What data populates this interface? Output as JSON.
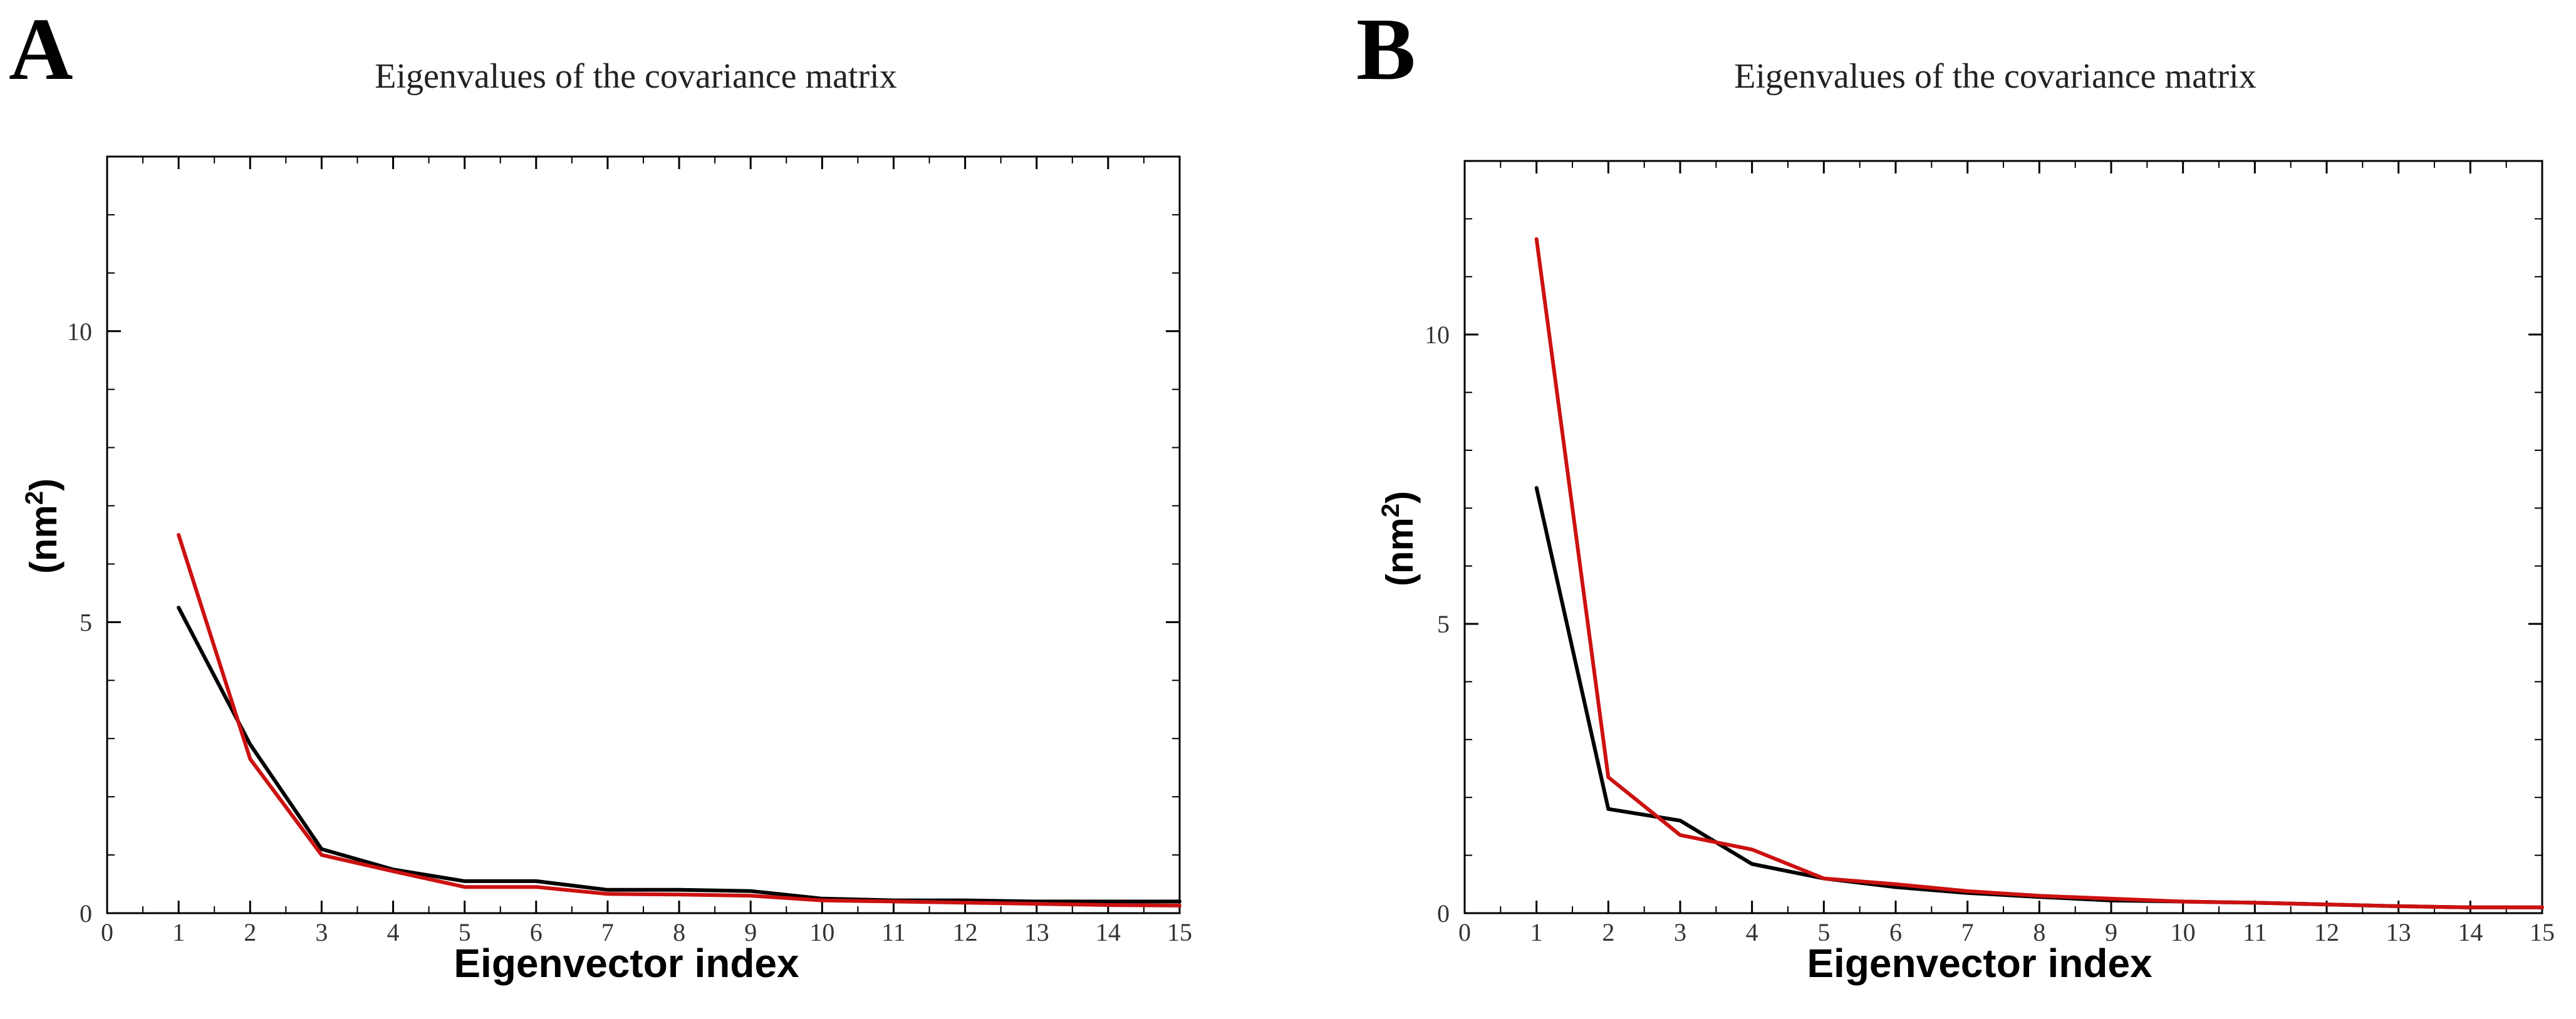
{
  "chart_data": [
    {
      "panel": "A",
      "type": "line",
      "title": "Eigenvalues of the covariance matrix",
      "xlabel": "Eigenvector index",
      "ylabel_base": "(nm",
      "ylabel_sup": "2",
      "ylabel_end": ")",
      "xlim": [
        0,
        15
      ],
      "ylim": [
        0,
        13
      ],
      "xticks": [
        0,
        1,
        2,
        3,
        4,
        5,
        6,
        7,
        8,
        9,
        10,
        11,
        12,
        13,
        14,
        15
      ],
      "yticks": [
        0,
        5,
        10
      ],
      "grid": false,
      "series": [
        {
          "name": "black",
          "color": "#000000",
          "x": [
            1,
            2,
            3,
            4,
            5,
            6,
            7,
            8,
            9,
            10,
            11,
            12,
            13,
            14,
            15
          ],
          "values": [
            5.25,
            2.9,
            1.1,
            0.75,
            0.55,
            0.55,
            0.4,
            0.4,
            0.38,
            0.25,
            0.22,
            0.22,
            0.2,
            0.2,
            0.2
          ]
        },
        {
          "name": "red",
          "color": "#cc1111",
          "x": [
            1,
            2,
            3,
            4,
            5,
            6,
            7,
            8,
            9,
            10,
            11,
            12,
            13,
            14,
            15
          ],
          "values": [
            6.5,
            2.65,
            1.0,
            0.72,
            0.45,
            0.45,
            0.33,
            0.32,
            0.3,
            0.22,
            0.2,
            0.18,
            0.16,
            0.14,
            0.13
          ]
        }
      ]
    },
    {
      "panel": "B",
      "type": "line",
      "title": "Eigenvalues of the covariance matrix",
      "xlabel": "Eigenvector index",
      "ylabel_base": "(nm",
      "ylabel_sup": "2",
      "ylabel_end": ")",
      "xlim": [
        0,
        15
      ],
      "ylim": [
        0,
        13
      ],
      "xticks": [
        0,
        1,
        2,
        3,
        4,
        5,
        6,
        7,
        8,
        9,
        10,
        11,
        12,
        13,
        14,
        15
      ],
      "yticks": [
        0,
        5,
        10
      ],
      "grid": false,
      "series": [
        {
          "name": "black",
          "color": "#000000",
          "x": [
            1,
            2,
            3,
            4,
            5,
            6,
            7,
            8,
            9,
            10,
            11,
            12,
            13,
            14,
            15
          ],
          "values": [
            7.35,
            1.8,
            1.6,
            0.85,
            0.6,
            0.45,
            0.35,
            0.28,
            0.22,
            0.2,
            0.18,
            0.15,
            0.12,
            0.1,
            0.1
          ]
        },
        {
          "name": "red",
          "color": "#cc1111",
          "x": [
            1,
            2,
            3,
            4,
            5,
            6,
            7,
            8,
            9,
            10,
            11,
            12,
            13,
            14,
            15
          ],
          "values": [
            11.65,
            2.35,
            1.35,
            1.1,
            0.6,
            0.5,
            0.38,
            0.3,
            0.25,
            0.2,
            0.18,
            0.15,
            0.12,
            0.1,
            0.1
          ]
        }
      ]
    }
  ]
}
